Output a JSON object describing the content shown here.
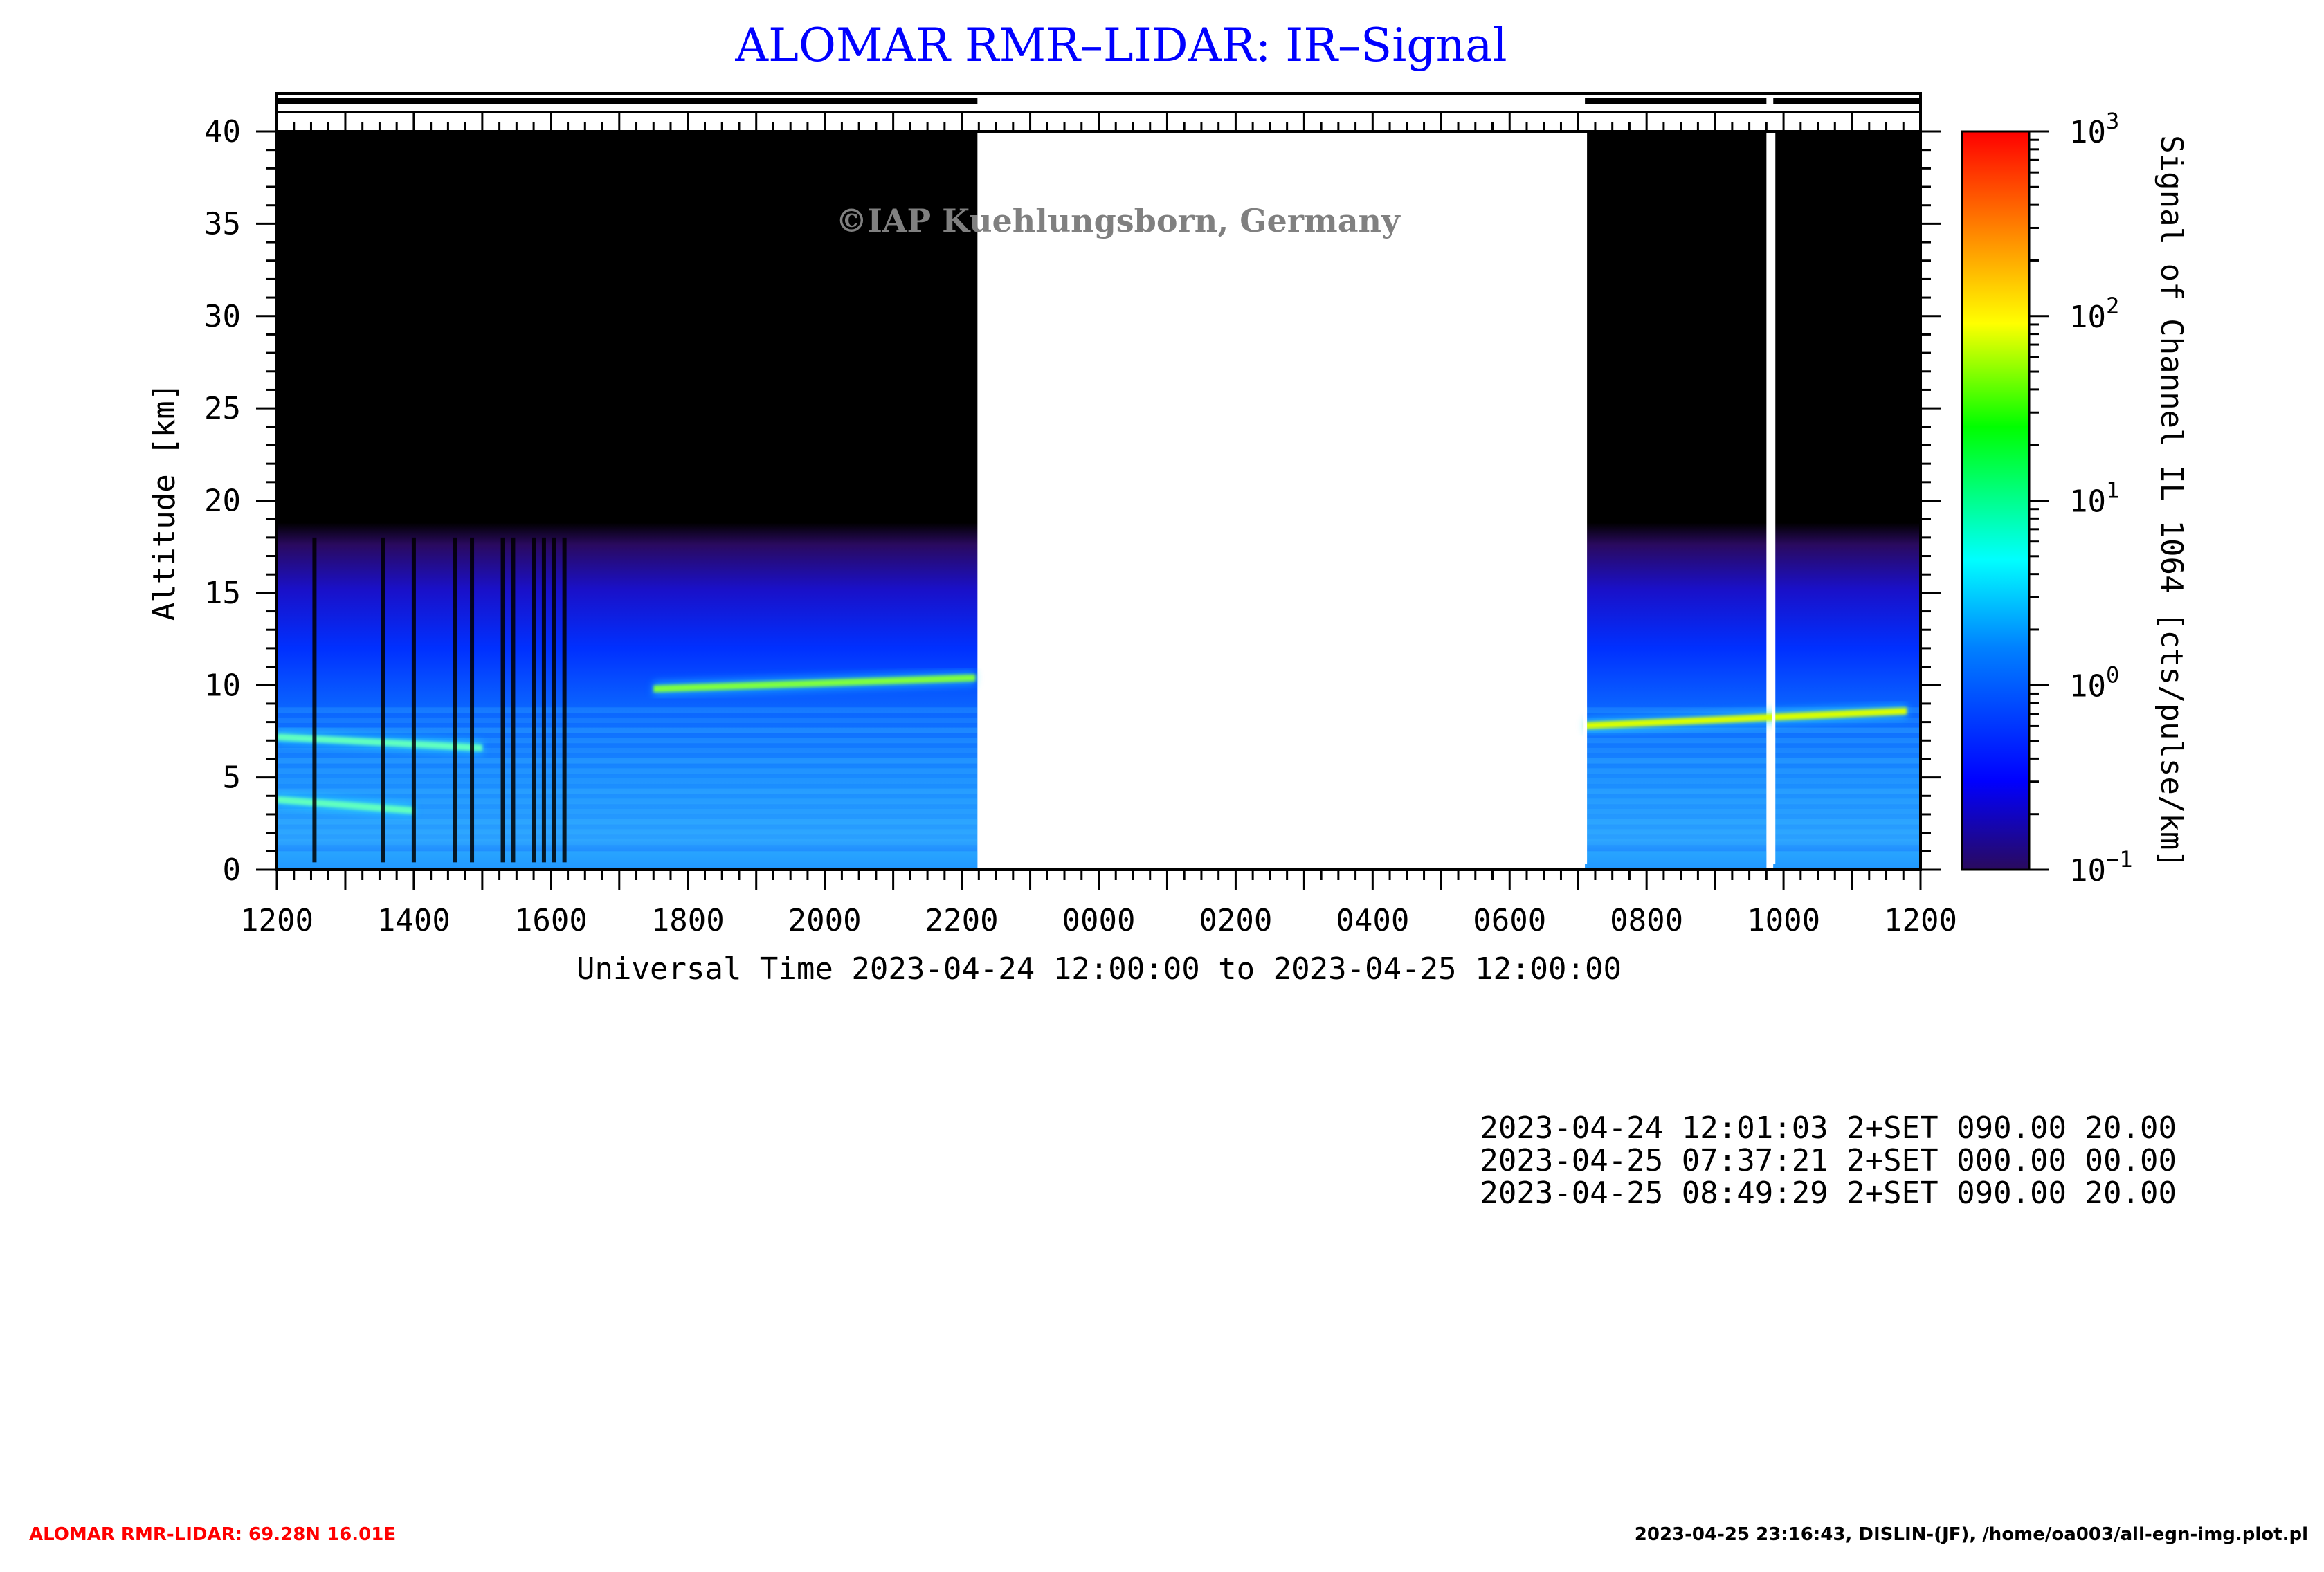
{
  "chart_data": {
    "type": "heatmap",
    "title": "ALOMAR RMR–LIDAR: IR–Signal",
    "watermark": "©IAP Kuehlungsborn, Germany",
    "xlabel": "Universal Time 2023-04-24 12:00:00 to 2023-04-25 12:00:00",
    "ylabel": "Altitude [km]",
    "x_tick_labels": [
      "1200",
      "1400",
      "1600",
      "1800",
      "2000",
      "2200",
      "0000",
      "0200",
      "0400",
      "0600",
      "0800",
      "1000",
      "1200"
    ],
    "x_range_hours": [
      0,
      24
    ],
    "y_ticks": [
      0,
      5,
      10,
      15,
      20,
      25,
      30,
      35,
      40
    ],
    "ylim": [
      0,
      40
    ],
    "colorbar": {
      "label": "Signal of Channel IL 1064 [cts/pulse/km]",
      "scale": "log",
      "range": [
        0.1,
        1000
      ],
      "tick_labels": [
        {
          "base": "10",
          "exp": "3",
          "value": 1000
        },
        {
          "base": "10",
          "exp": "2",
          "value": 100
        },
        {
          "base": "10",
          "exp": "1",
          "value": 10
        },
        {
          "base": "10",
          "exp": "0",
          "value": 1
        },
        {
          "base": "10",
          "exp": "−1",
          "value": 0.1
        }
      ],
      "colors": [
        "#2a0a5e",
        "#0000ff",
        "#0080ff",
        "#00ffff",
        "#00ff00",
        "#ffff00",
        "#ff8000",
        "#ff0000"
      ]
    },
    "measurement_periods_hours": [
      [
        0.0,
        10.23
      ],
      [
        19.1,
        21.75
      ],
      [
        21.85,
        24.0
      ]
    ],
    "data_ranges": {
      "background_top_km": 18,
      "near_field_km": [
        0,
        1
      ]
    },
    "layers": [
      {
        "name": "",
        "t_start_h": 5.5,
        "t_end_h": 10.2,
        "alt_start_km": 9.8,
        "alt_end_km": 10.4,
        "peak_value": 10
      },
      {
        "name": "",
        "t_start_h": 19.1,
        "t_end_h": 23.8,
        "alt_start_km": 7.8,
        "alt_end_km": 8.6,
        "peak_value": 30
      },
      {
        "name": "",
        "t_start_h": 0.0,
        "t_end_h": 3.0,
        "alt_start_km": 7.2,
        "alt_end_km": 6.6,
        "peak_value": 8
      },
      {
        "name": "",
        "t_start_h": 0.0,
        "t_end_h": 2.0,
        "alt_start_km": 3.8,
        "alt_end_km": 3.2,
        "peak_value": 8
      }
    ],
    "dark_streaks_hours": [
      0.55,
      1.55,
      2.0,
      2.6,
      2.85,
      3.3,
      3.45,
      3.75,
      3.9,
      4.05,
      4.2
    ],
    "run_log": [
      "2023-04-24 12:01:03 2+SET 090.00 20.00",
      "2023-04-25 07:37:21 2+SET 000.00 00.00",
      "2023-04-25 08:49:29 2+SET 090.00 20.00"
    ],
    "footer_left": "ALOMAR RMR-LIDAR: 69.28N 16.01E",
    "footer_right": "2023-04-25 23:16:43, DISLIN-(JF), /home/oa003/all-egn-img.plot.pl",
    "colors": {
      "title": "#0000ff",
      "footer_left": "#ff0000",
      "watermark": "#808080"
    }
  }
}
